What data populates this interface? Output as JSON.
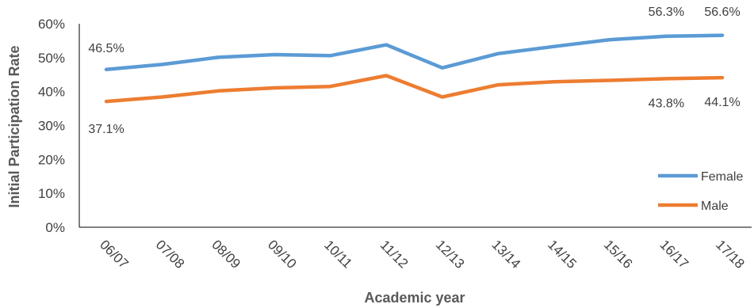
{
  "chart_data": {
    "type": "line",
    "title": "",
    "xlabel": "Academic year",
    "ylabel": "Initial Participation Rate",
    "categories": [
      "06/07",
      "07/08",
      "08/09",
      "09/10",
      "10/11",
      "11/12",
      "12/13",
      "13/14",
      "14/15",
      "15/16",
      "16/17",
      "17/18"
    ],
    "ylim": [
      0,
      60
    ],
    "yticks": [
      "0%",
      "10%",
      "20%",
      "30%",
      "40%",
      "50%",
      "60%"
    ],
    "grid": false,
    "legend_position": "right",
    "series": [
      {
        "name": "Female",
        "color": "#5B9BD5",
        "values": [
          46.5,
          48.0,
          50.1,
          50.9,
          50.6,
          53.8,
          47.0,
          51.2,
          53.3,
          55.3,
          56.3,
          56.6
        ],
        "data_labels": [
          {
            "index": 0,
            "text": "46.5%"
          },
          {
            "index": 10,
            "text": "56.3%"
          },
          {
            "index": 11,
            "text": "56.6%"
          }
        ]
      },
      {
        "name": "Male",
        "color": "#ED7D31",
        "values": [
          37.1,
          38.4,
          40.2,
          41.1,
          41.5,
          44.7,
          38.4,
          42.0,
          42.9,
          43.3,
          43.8,
          44.1
        ],
        "data_labels": [
          {
            "index": 0,
            "text": "37.1%"
          },
          {
            "index": 10,
            "text": "43.8%"
          },
          {
            "index": 11,
            "text": "44.1%"
          }
        ]
      }
    ]
  }
}
